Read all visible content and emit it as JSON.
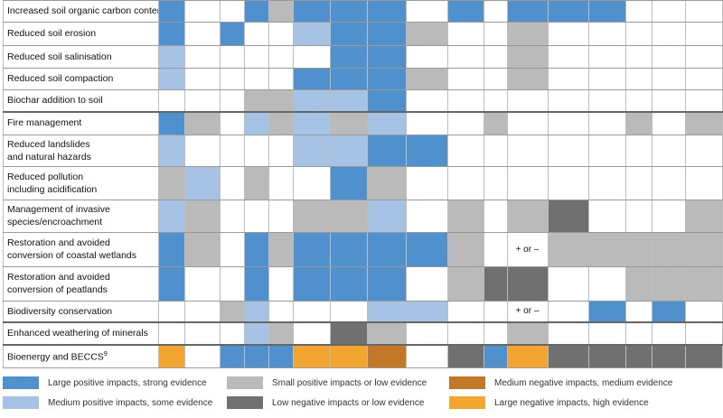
{
  "colors": {
    "LP": "#5090cc",
    "MP": "#a6c2e4",
    "SP": "#bababa",
    "LN": "#707070",
    "MN": "#c27827",
    "HN": "#f2a530",
    "_": "#ffffff"
  },
  "rows": [
    {
      "name": "row-increased-soil-organic-carbon",
      "lines": [
        "Increased soil organic carbon content"
      ],
      "cells": [
        "LP",
        "_",
        "_",
        "LP",
        "SP",
        "LP",
        "LP",
        "LP",
        "_",
        "LP",
        "_",
        "LP",
        "LP",
        "LP",
        "_",
        "_",
        "_"
      ]
    },
    {
      "name": "row-reduced-soil-erosion",
      "lines": [
        "Reduced soil erosion"
      ],
      "cells": [
        "LP",
        "_",
        "LP",
        "_",
        "_",
        "MP",
        "LP",
        "LP",
        "SP",
        "_",
        "_",
        "SP",
        "_",
        "_",
        "_",
        "_",
        "_"
      ]
    },
    {
      "name": "row-reduced-soil-salinisation",
      "lines": [
        "Reduced soil salinisation"
      ],
      "cells": [
        "MP",
        "_",
        "_",
        "_",
        "_",
        "_",
        "LP",
        "LP",
        "_",
        "_",
        "_",
        "SP",
        "_",
        "_",
        "_",
        "_",
        "_"
      ]
    },
    {
      "name": "row-reduced-soil-compaction",
      "lines": [
        "Reduced soil compaction"
      ],
      "cells": [
        "MP",
        "_",
        "_",
        "_",
        "_",
        "LP",
        "LP",
        "LP",
        "SP",
        "_",
        "_",
        "SP",
        "_",
        "_",
        "_",
        "_",
        "_"
      ]
    },
    {
      "name": "row-biochar-addition",
      "lines": [
        "Biochar addition to soil"
      ],
      "cells": [
        "_",
        "_",
        "_",
        "SP",
        "SP",
        "MP",
        "MP",
        "LP",
        "_",
        "_",
        "_",
        "_",
        "_",
        "_",
        "_",
        "_",
        "_"
      ]
    },
    {
      "name": "row-fire-management",
      "lines": [
        "Fire management"
      ],
      "cells": [
        "LP",
        "SP",
        "_",
        "MP",
        "SP",
        "MP",
        "SP",
        "MP",
        "_",
        "_",
        "SP",
        "_",
        "_",
        "_",
        "SP",
        "_",
        "SP"
      ]
    },
    {
      "name": "row-reduced-landslides",
      "lines": [
        "Reduced landslides",
        "and natural hazards"
      ],
      "cells": [
        "MP",
        "_",
        "_",
        "_",
        "_",
        "MP",
        "MP",
        "LP",
        "LP",
        "_",
        "_",
        "_",
        "_",
        "_",
        "_",
        "_",
        "_"
      ]
    },
    {
      "name": "row-reduced-pollution",
      "lines": [
        "Reduced pollution",
        "including acidification"
      ],
      "cells": [
        "SP",
        "MP",
        "_",
        "SP",
        "_",
        "_",
        "LP",
        "SP",
        "_",
        "_",
        "_",
        "_",
        "_",
        "_",
        "_",
        "_",
        "_"
      ]
    },
    {
      "name": "row-invasive-species",
      "lines": [
        "Management of invasive",
        "species/encroachment"
      ],
      "cells": [
        "MP",
        "SP",
        "_",
        "_",
        "_",
        "SP",
        "SP",
        "MP",
        "_",
        "SP",
        "_",
        "SP",
        "LN",
        "_",
        "_",
        "_",
        "SP"
      ]
    },
    {
      "name": "row-coastal-wetlands",
      "lines": [
        "Restoration and avoided",
        "conversion of coastal wetlands"
      ],
      "cells": [
        "LP",
        "SP",
        "_",
        "LP",
        "SP",
        "LP",
        "LP",
        "LP",
        "LP",
        "SP",
        "_",
        "_",
        "SP",
        "SP",
        "SP",
        "SP",
        "SP"
      ]
    },
    {
      "name": "row-peatlands",
      "lines": [
        "Restoration and avoided",
        "conversion of peatlands"
      ],
      "cells": [
        "LP",
        "_",
        "_",
        "LP",
        "_",
        "LP",
        "LP",
        "LP",
        "_",
        "SP",
        "LN",
        "LN",
        "_",
        "_",
        "SP",
        "SP",
        "SP"
      ]
    },
    {
      "name": "row-biodiversity-conservation",
      "lines": [
        "Biodiversity conservation"
      ],
      "cells": [
        "_",
        "_",
        "SP",
        "MP",
        "_",
        "_",
        "_",
        "MP",
        "MP",
        "_",
        "_",
        "_",
        "_",
        "LP",
        "_",
        "LP",
        "_"
      ]
    },
    {
      "name": "row-enhanced-weathering",
      "lines": [
        "Enhanced weathering of minerals"
      ],
      "cells": [
        "_",
        "_",
        "_",
        "MP",
        "SP",
        "_",
        "LN",
        "SP",
        "_",
        "_",
        "_",
        "SP",
        "_",
        "_",
        "_",
        "_",
        "_"
      ]
    },
    {
      "name": "row-bioenergy-beccs",
      "lines": [
        "Bioenergy and BECCS"
      ],
      "sup": "9",
      "cells": [
        "HN",
        "_",
        "LP",
        "LP",
        "LP",
        "HN",
        "HN",
        "MN",
        "_",
        "LN",
        "LP",
        "HN",
        "LN",
        "LN",
        "LN",
        "LN",
        "LN"
      ]
    }
  ],
  "cell_texts": [
    {
      "row": 9,
      "col": 11,
      "text": "+ or –"
    },
    {
      "row": 11,
      "col": 11,
      "text": "+ or –"
    }
  ],
  "legend": [
    {
      "key": "LP",
      "text": "Large positive impacts, strong evidence"
    },
    {
      "key": "MP",
      "text": "Medium positive impacts, some evidence"
    },
    {
      "key": "SP",
      "text": "Small positive impacts or low evidence"
    },
    {
      "key": "LN",
      "text": "Low negative impacts or low evidence"
    },
    {
      "key": "MN",
      "text": "Medium negative impacts, medium evidence"
    },
    {
      "key": "HN",
      "text": "Large negative impacts, high evidence"
    }
  ]
}
